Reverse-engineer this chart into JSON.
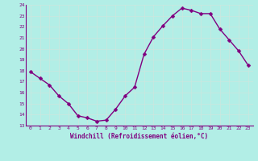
{
  "x": [
    0,
    1,
    2,
    3,
    4,
    5,
    6,
    7,
    8,
    9,
    10,
    11,
    12,
    13,
    14,
    15,
    16,
    17,
    18,
    19,
    20,
    21,
    22,
    23
  ],
  "y": [
    17.9,
    17.3,
    16.7,
    15.7,
    15.0,
    13.9,
    13.7,
    13.4,
    13.5,
    14.5,
    15.7,
    16.5,
    19.5,
    21.1,
    22.1,
    23.0,
    23.7,
    23.5,
    23.2,
    23.2,
    21.8,
    20.8,
    19.8,
    18.5
  ],
  "line_color": "#800080",
  "marker_color": "#800080",
  "bg_color": "#b2eee6",
  "grid_color": "#c8e8e0",
  "xlabel": "Windchill (Refroidissement éolien,°C)",
  "xlabel_color": "#800080",
  "ylim": [
    13,
    24
  ],
  "xlim_min": -0.5,
  "xlim_max": 23.5,
  "yticks": [
    13,
    14,
    15,
    16,
    17,
    18,
    19,
    20,
    21,
    22,
    23,
    24
  ],
  "xticks": [
    0,
    1,
    2,
    3,
    4,
    5,
    6,
    7,
    8,
    9,
    10,
    11,
    12,
    13,
    14,
    15,
    16,
    17,
    18,
    19,
    20,
    21,
    22,
    23
  ],
  "tick_label_color": "#800080",
  "line_width": 1.0,
  "marker_size": 2.5,
  "spine_color": "#800080"
}
